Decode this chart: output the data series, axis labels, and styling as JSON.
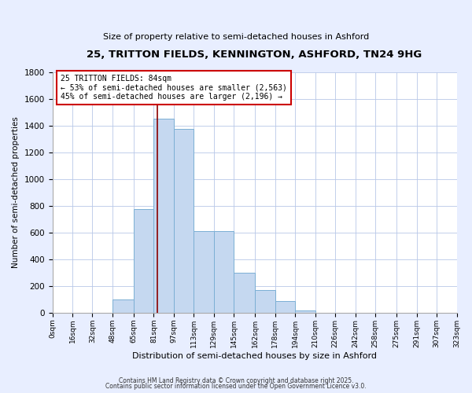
{
  "title": "25, TRITTON FIELDS, KENNINGTON, ASHFORD, TN24 9HG",
  "subtitle": "Size of property relative to semi-detached houses in Ashford",
  "bar_values": [
    0,
    0,
    0,
    100,
    775,
    1450,
    1375,
    610,
    610,
    300,
    170,
    85,
    20,
    0,
    0,
    0,
    0,
    0,
    0,
    0
  ],
  "bin_edges": [
    0,
    16,
    32,
    48,
    65,
    81,
    97,
    113,
    129,
    145,
    162,
    178,
    194,
    210,
    226,
    242,
    258,
    275,
    291,
    307,
    323
  ],
  "bin_labels": [
    "0sqm",
    "16sqm",
    "32sqm",
    "48sqm",
    "65sqm",
    "81sqm",
    "97sqm",
    "113sqm",
    "129sqm",
    "145sqm",
    "162sqm",
    "178sqm",
    "194sqm",
    "210sqm",
    "226sqm",
    "242sqm",
    "258sqm",
    "275sqm",
    "291sqm",
    "307sqm",
    "323sqm"
  ],
  "bar_color": "#c5d8f0",
  "bar_edge_color": "#7bafd4",
  "vline_x": 84,
  "vline_color": "#8b0000",
  "annotation_title": "25 TRITTON FIELDS: 84sqm",
  "annotation_line1": "← 53% of semi-detached houses are smaller (2,563)",
  "annotation_line2": "45% of semi-detached houses are larger (2,196) →",
  "annotation_box_color": "#ffffff",
  "annotation_box_edge": "#cc0000",
  "ylabel": "Number of semi-detached properties",
  "xlabel": "Distribution of semi-detached houses by size in Ashford",
  "ylim": [
    0,
    1800
  ],
  "yticks": [
    0,
    200,
    400,
    600,
    800,
    1000,
    1200,
    1400,
    1600,
    1800
  ],
  "footer1": "Contains HM Land Registry data © Crown copyright and database right 2025.",
  "footer2": "Contains public sector information licensed under the Open Government Licence v3.0.",
  "bg_color": "#e8eeff",
  "plot_bg_color": "#ffffff",
  "grid_color": "#b8c8e8"
}
